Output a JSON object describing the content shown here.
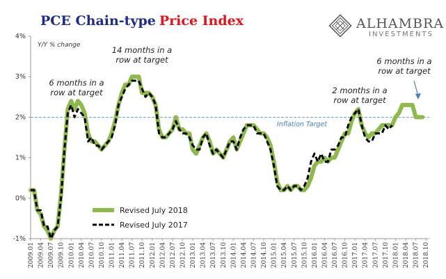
{
  "header": {
    "title_part1": "PCE Chain-type",
    "title_part2": "Price Index"
  },
  "logo": {
    "name": "ALHAMBRA",
    "sub": "INVESTMENTS"
  },
  "colors": {
    "revised_2018": "#8fb84d",
    "revised_2017": "#000000",
    "target": "#4a7fb8",
    "title_blue": "#1f2a8a",
    "title_red": "#e0151b"
  },
  "chart_data": {
    "type": "line",
    "ylabel_note": "Y/Y % change",
    "ylim": [
      -1,
      4
    ],
    "yticks": [
      "4%",
      "3%",
      "2%",
      "1%",
      "0%",
      "-1%"
    ],
    "x_start": "2009.01",
    "x_tick_labels": [
      "2009.01",
      "2009.04",
      "2009.07",
      "2009.10",
      "2010.01",
      "2010.04",
      "2010.07",
      "2010.10",
      "2011.01",
      "2011.04",
      "2011.07",
      "2011.10",
      "2012.01",
      "2012.04",
      "2012.07",
      "2012.10",
      "2013.01",
      "2013.04",
      "2013.07",
      "2013.10",
      "2014.01",
      "2014.04",
      "2014.07",
      "2014.10",
      "2015.01",
      "2015.04",
      "2015.07",
      "2015.10",
      "2016.01",
      "2016.04",
      "2016.07",
      "2016.10",
      "2017.01",
      "2017.04",
      "2017.07",
      "2017.10",
      "2018.01",
      "2018.04",
      "2018.07",
      "2018.10"
    ],
    "target": {
      "value": 2.0,
      "label": "Inflation Target"
    },
    "legend": [
      "Revised July 2018",
      "Revised July 2017"
    ],
    "series": [
      {
        "name": "Revised July 2018",
        "values": [
          0.2,
          0.2,
          -0.3,
          -0.4,
          -0.7,
          -0.8,
          -1.0,
          -0.8,
          -0.7,
          0.1,
          1.2,
          2.2,
          2.4,
          2.2,
          2.4,
          2.3,
          2.1,
          1.6,
          1.4,
          1.4,
          1.3,
          1.2,
          1.3,
          1.4,
          1.6,
          1.9,
          2.3,
          2.6,
          2.8,
          2.8,
          3.0,
          3.0,
          3.0,
          2.6,
          2.6,
          2.6,
          2.5,
          2.3,
          1.7,
          1.5,
          1.5,
          1.6,
          1.7,
          2.0,
          1.7,
          1.7,
          1.6,
          1.6,
          1.2,
          1.1,
          1.3,
          1.5,
          1.6,
          1.4,
          1.1,
          1.2,
          1.1,
          1.0,
          1.2,
          1.4,
          1.5,
          1.2,
          1.4,
          1.6,
          1.8,
          1.8,
          1.8,
          1.7,
          1.6,
          1.6,
          1.5,
          1.3,
          0.9,
          0.4,
          0.2,
          0.2,
          0.3,
          0.2,
          0.3,
          0.3,
          0.2,
          0.2,
          0.3,
          0.5,
          0.8,
          0.9,
          0.9,
          1.0,
          0.9,
          1.0,
          1.0,
          1.2,
          1.4,
          1.6,
          1.6,
          1.9,
          2.1,
          2.2,
          1.8,
          1.6,
          1.5,
          1.6,
          1.6,
          1.7,
          1.8,
          1.8,
          1.8,
          1.8,
          2.0,
          2.1,
          2.3,
          2.3,
          2.3,
          2.3,
          2.0,
          2.0,
          2.0
        ],
        "color": "#8fb84d"
      },
      {
        "name": "Revised July 2017",
        "values": [
          0.2,
          0.2,
          -0.3,
          -0.3,
          -0.7,
          -0.7,
          -1.0,
          -0.8,
          -0.7,
          0.0,
          1.2,
          2.1,
          2.3,
          2.0,
          2.2,
          2.1,
          2.0,
          1.4,
          1.5,
          1.3,
          1.3,
          1.2,
          1.3,
          1.4,
          1.5,
          1.8,
          2.3,
          2.5,
          2.7,
          2.8,
          2.9,
          2.9,
          2.9,
          2.7,
          2.5,
          2.6,
          2.5,
          2.3,
          1.6,
          1.5,
          1.5,
          1.6,
          1.7,
          1.9,
          1.7,
          1.6,
          1.6,
          1.5,
          1.3,
          1.2,
          1.2,
          1.5,
          1.6,
          1.3,
          1.1,
          1.2,
          1.1,
          1.0,
          1.2,
          1.4,
          1.4,
          1.2,
          1.5,
          1.7,
          1.8,
          1.8,
          1.8,
          1.6,
          1.6,
          1.6,
          1.4,
          1.2,
          0.8,
          0.3,
          0.2,
          0.2,
          0.3,
          0.2,
          0.3,
          0.3,
          0.2,
          0.3,
          0.5,
          0.9,
          1.1,
          0.9,
          1.1,
          0.9,
          0.9,
          1.2,
          1.2,
          1.3,
          1.5,
          1.5,
          1.8,
          2.0,
          2.1,
          2.2,
          1.8,
          1.5,
          1.4,
          1.4,
          1.6,
          1.6,
          1.6,
          1.8,
          1.7,
          1.8
        ],
        "color": "#000000"
      }
    ],
    "annotations": [
      {
        "lines": [
          "6 months in a",
          "row at target"
        ]
      },
      {
        "lines": [
          "14 months in a",
          "row at target"
        ]
      },
      {
        "lines": [
          "2 months in a",
          "row at target"
        ]
      },
      {
        "lines": [
          "6 months in a",
          "row at target"
        ]
      }
    ]
  }
}
